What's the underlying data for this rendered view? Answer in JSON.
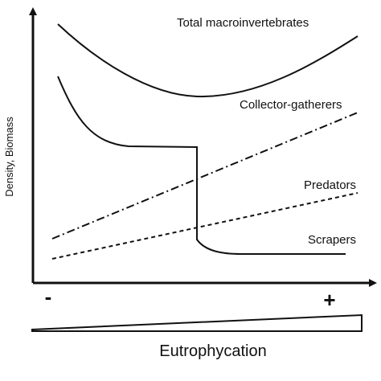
{
  "axes": {
    "y_label": "Density, Biomass",
    "x_min_label": "-",
    "x_max_label": "+",
    "x_label": "Eutrophycation"
  },
  "curves": [
    {
      "label": "Total macroinvertebrates"
    },
    {
      "label": "Collector-gatherers"
    },
    {
      "label": "Predators"
    },
    {
      "label": "Scrapers"
    }
  ]
}
